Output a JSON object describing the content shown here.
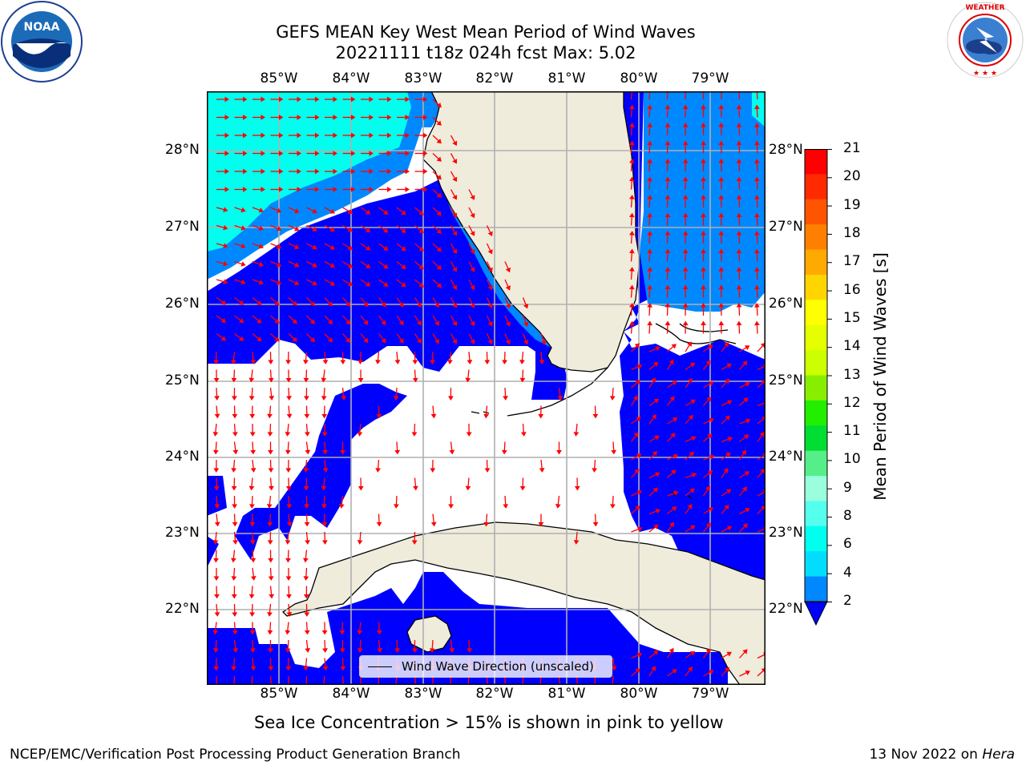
{
  "title": {
    "line1": "GEFS MEAN Key West Mean Period of Wind Waves",
    "line2": "20221111 t18z 024h fcst   Max: 5.02"
  },
  "logos": {
    "left": {
      "name": "noaa-logo",
      "text": "NOAA"
    },
    "right": {
      "name": "nws-logo",
      "text": "NATIONAL WEATHER SERVICE"
    }
  },
  "map": {
    "lon_labels": [
      "85°W",
      "84°W",
      "83°W",
      "82°W",
      "81°W",
      "80°W",
      "79°W"
    ],
    "lat_labels": [
      "28°N",
      "27°N",
      "26°N",
      "25°N",
      "24°N",
      "23°N",
      "22°N"
    ],
    "legend_label": "Wind Wave Direction (unscaled)",
    "land_color": "#efecdc",
    "arrow_color": "#ff0000",
    "grid_color": "#b0b0b0"
  },
  "colorbar": {
    "title": "Mean Period of Wind Waves [s]",
    "ticks": [
      "21",
      "20",
      "19",
      "18",
      "17",
      "16",
      "15",
      "14",
      "13",
      "12",
      "11",
      "10",
      "9",
      "8",
      "6",
      "4",
      "2"
    ],
    "colors": [
      "#ff0000",
      "#ff2a00",
      "#ff5500",
      "#ff8000",
      "#ffaa00",
      "#ffd500",
      "#ffff00",
      "#e5ff00",
      "#ccff00",
      "#88ee00",
      "#22ee00",
      "#00dd33",
      "#55ee88",
      "#99ffdd",
      "#55ffee",
      "#00ffee",
      "#00ddff",
      "#0088ff"
    ],
    "extend_color": "#0000ff"
  },
  "note": "Sea Ice Concentration > 15% is shown in pink to yellow",
  "footer": {
    "left": "NCEP/EMC/Verification Post Processing Product Generation Branch",
    "date": "13 Nov 2022 on ",
    "machine": "Hera"
  }
}
